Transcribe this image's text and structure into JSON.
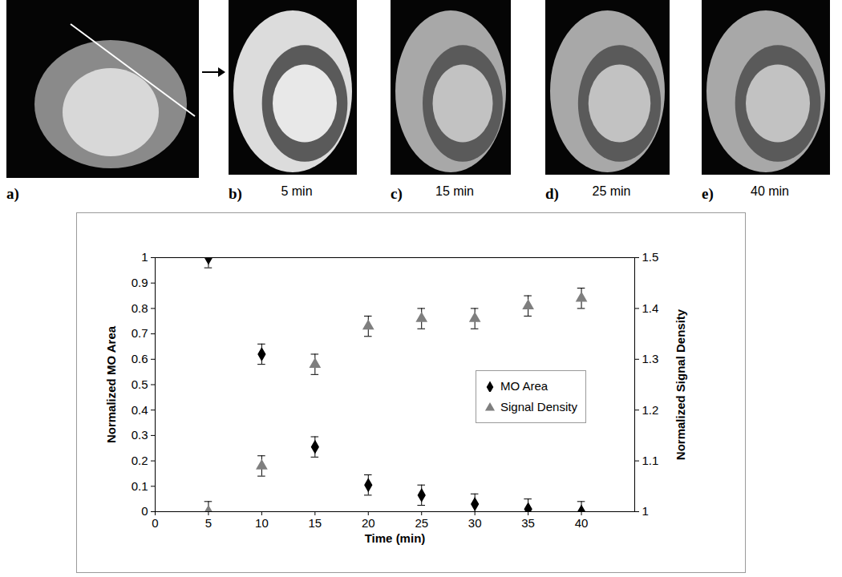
{
  "chart_data": {
    "type": "scatter",
    "xlabel": "Time (min)",
    "ylabel": "Normalized MO Area",
    "y2label": "Normalized Signal Density",
    "x": [
      5,
      10,
      15,
      20,
      25,
      30,
      35,
      40
    ],
    "series": [
      {
        "name": "MO Area",
        "color": "#000000",
        "marker": "diamond",
        "values": [
          1.0,
          0.62,
          0.255,
          0.105,
          0.065,
          0.03,
          0.01,
          0.0
        ],
        "errors": [
          0.04,
          0.04,
          0.04,
          0.04,
          0.04,
          0.04,
          0.04,
          0.04
        ]
      },
      {
        "name": "Signal Density",
        "color": "#7f7f7f",
        "marker": "triangle",
        "axis": "y2",
        "values": [
          1.0,
          1.09,
          1.29,
          1.365,
          1.38,
          1.38,
          1.405,
          1.42
        ],
        "errors": [
          0.02,
          0.02,
          0.02,
          0.02,
          0.02,
          0.02,
          0.02,
          0.02
        ]
      }
    ],
    "xlim": [
      0,
      45
    ],
    "xticks": [
      0,
      5,
      10,
      15,
      20,
      25,
      30,
      35,
      40
    ],
    "ylim": [
      0,
      1
    ],
    "yticks": [
      0,
      0.1,
      0.2,
      0.3,
      0.4,
      0.5,
      0.6,
      0.7,
      0.8,
      0.9,
      1
    ],
    "y2lim": [
      1,
      1.5
    ],
    "y2ticks": [
      1,
      1.1,
      1.2,
      1.3,
      1.4,
      1.5
    ],
    "legend": "right"
  },
  "panels": [
    {
      "label": "a)"
    },
    {
      "label": "b)",
      "caption": "5 min"
    },
    {
      "label": "c)",
      "caption": "15 min"
    },
    {
      "label": "d)",
      "caption": "25 min"
    },
    {
      "label": "e)",
      "caption": "40 min"
    }
  ]
}
